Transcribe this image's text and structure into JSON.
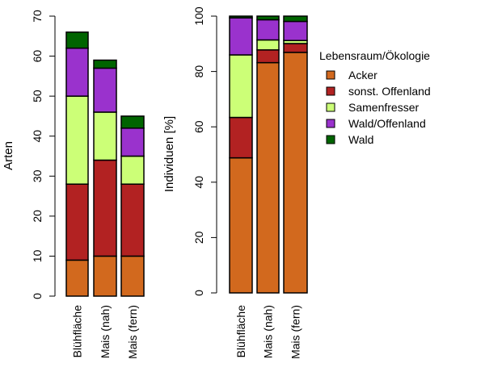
{
  "colors": {
    "acker": "#D2691E",
    "sonst_offenland": "#B22222",
    "samenfresser": "#CCFF77",
    "wald_offenland": "#9A32CD",
    "wald": "#006400"
  },
  "legend": {
    "title": "Lebensraum/Ökologie",
    "entries": [
      {
        "label": "Acker",
        "color": "#D2691E"
      },
      {
        "label": "sonst. Offenland",
        "color": "#B22222"
      },
      {
        "label": "Samenfresser",
        "color": "#CCFF77"
      },
      {
        "label": "Wald/Offenland",
        "color": "#9A32CD"
      },
      {
        "label": "Wald",
        "color": "#006400"
      }
    ]
  },
  "chart_data": [
    {
      "type": "bar",
      "stacked": true,
      "title": "",
      "xlabel": "",
      "ylabel": "Arten",
      "ylim": [
        0,
        70
      ],
      "yticks": [
        0,
        10,
        20,
        30,
        40,
        50,
        60,
        70
      ],
      "categories": [
        "Blühfläche",
        "Mais (nah)",
        "Mais (fern)"
      ],
      "series": [
        {
          "name": "Acker",
          "color": "#D2691E",
          "values": [
            9,
            10,
            10
          ]
        },
        {
          "name": "sonst. Offenland",
          "color": "#B22222",
          "values": [
            19,
            24,
            18
          ]
        },
        {
          "name": "Samenfresser",
          "color": "#CCFF77",
          "values": [
            22,
            12,
            7
          ]
        },
        {
          "name": "Wald/Offenland",
          "color": "#9A32CD",
          "values": [
            12,
            11,
            7
          ]
        },
        {
          "name": "Wald",
          "color": "#006400",
          "values": [
            4,
            2,
            3
          ]
        }
      ]
    },
    {
      "type": "bar",
      "stacked": true,
      "title": "",
      "xlabel": "",
      "ylabel": "Individuen [%]",
      "ylim": [
        0,
        100
      ],
      "yticks": [
        0,
        20,
        40,
        60,
        80,
        100
      ],
      "categories": [
        "Blühfläche",
        "Mais (nah)",
        "Mais (fern)"
      ],
      "series": [
        {
          "name": "Acker",
          "color": "#D2691E",
          "values": [
            48.8,
            83.2,
            86.9
          ]
        },
        {
          "name": "sonst. Offenland",
          "color": "#B22222",
          "values": [
            14.6,
            4.6,
            3.2
          ]
        },
        {
          "name": "Samenfresser",
          "color": "#CCFF77",
          "values": [
            22.6,
            3.6,
            1.1
          ]
        },
        {
          "name": "Wald/Offenland",
          "color": "#9A32CD",
          "values": [
            13.4,
            7.3,
            6.9
          ]
        },
        {
          "name": "Wald",
          "color": "#006400",
          "values": [
            0.6,
            1.3,
            1.9
          ]
        }
      ],
      "legend_position": "right"
    }
  ]
}
